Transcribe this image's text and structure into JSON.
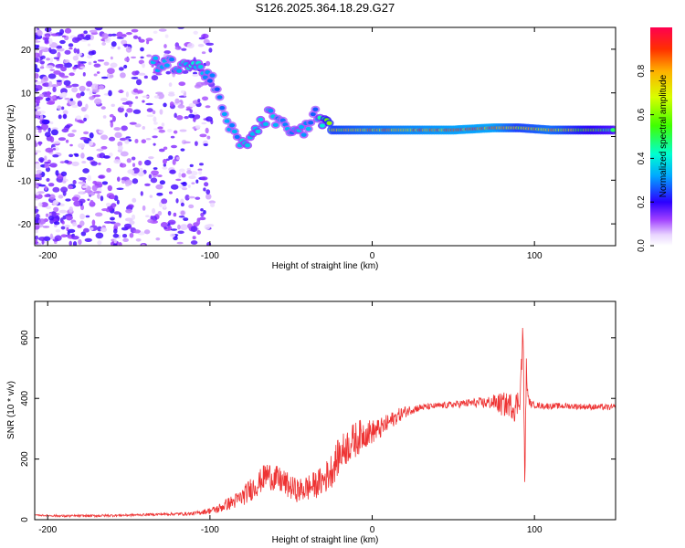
{
  "title": "S126.2025.364.18.29.G27",
  "chart_data": [
    {
      "type": "heatmap",
      "title": "S126.2025.364.18.29.G27",
      "xlabel": "Height of straight line (km)",
      "ylabel": "Frequency (Hz)",
      "xlim": [
        -208,
        150
      ],
      "ylim": [
        -25,
        25
      ],
      "xticks": [
        -200,
        -100,
        0,
        100
      ],
      "yticks": [
        -20,
        -10,
        0,
        10,
        20
      ],
      "colorbar": {
        "label": "Normalized spectral amplitude",
        "range": [
          0,
          1
        ],
        "ticks": [
          0.0,
          0.2,
          0.4,
          0.6,
          0.8
        ]
      },
      "ridge": [
        {
          "x": -135,
          "y": 16.5,
          "a": 0.35
        },
        {
          "x": -125,
          "y": 16.5,
          "a": 0.3
        },
        {
          "x": -110,
          "y": 16.5,
          "a": 0.4
        },
        {
          "x": -100,
          "y": 14.0,
          "a": 0.3
        },
        {
          "x": -88,
          "y": 2.0,
          "a": 0.3
        },
        {
          "x": -80,
          "y": -2.0,
          "a": 0.35
        },
        {
          "x": -72,
          "y": 1.0,
          "a": 0.4
        },
        {
          "x": -64,
          "y": 5.0,
          "a": 0.35
        },
        {
          "x": -55,
          "y": 2.5,
          "a": 0.3
        },
        {
          "x": -45,
          "y": 0.5,
          "a": 0.35
        },
        {
          "x": -35,
          "y": 5.0,
          "a": 0.3
        },
        {
          "x": -25,
          "y": 1.5,
          "a": 0.7
        },
        {
          "x": 0,
          "y": 1.5,
          "a": 0.8
        },
        {
          "x": 25,
          "y": 1.5,
          "a": 0.85
        },
        {
          "x": 50,
          "y": 1.5,
          "a": 0.9
        },
        {
          "x": 75,
          "y": 2.0,
          "a": 0.9
        },
        {
          "x": 90,
          "y": 2.0,
          "a": 0.7
        },
        {
          "x": 110,
          "y": 1.5,
          "a": 0.8
        },
        {
          "x": 130,
          "y": 1.5,
          "a": 0.6
        },
        {
          "x": 150,
          "y": 1.5,
          "a": 0.5
        }
      ]
    },
    {
      "type": "line",
      "xlabel": "Height of straight line (km)",
      "ylabel": "SNR (10 * v/v)",
      "xlim": [
        -208,
        150
      ],
      "ylim": [
        0,
        720
      ],
      "xticks": [
        -200,
        -100,
        0,
        100
      ],
      "yticks": [
        0,
        200,
        400,
        600
      ],
      "color": "#ee3333",
      "series": [
        {
          "name": "SNR",
          "x": [
            -208,
            -190,
            -170,
            -150,
            -130,
            -110,
            -100,
            -95,
            -90,
            -85,
            -80,
            -75,
            -70,
            -65,
            -60,
            -55,
            -50,
            -45,
            -40,
            -35,
            -30,
            -25,
            -20,
            -15,
            -10,
            -5,
            0,
            5,
            10,
            15,
            20,
            25,
            30,
            40,
            50,
            60,
            70,
            75,
            80,
            85,
            88,
            91,
            93,
            94,
            95,
            96,
            98,
            105,
            120,
            135,
            150
          ],
          "y": [
            15,
            12,
            13,
            15,
            18,
            20,
            30,
            35,
            50,
            60,
            75,
            100,
            120,
            150,
            135,
            125,
            105,
            95,
            105,
            115,
            130,
            165,
            215,
            245,
            265,
            285,
            290,
            300,
            320,
            340,
            355,
            365,
            370,
            375,
            380,
            385,
            385,
            388,
            380,
            380,
            370,
            400,
            620,
            120,
            500,
            400,
            380,
            375,
            375,
            372,
            370
          ],
          "noise": [
            2,
            4,
            4,
            4,
            4,
            6,
            10,
            15,
            20,
            25,
            30,
            40,
            40,
            45,
            45,
            45,
            40,
            40,
            45,
            45,
            50,
            60,
            60,
            60,
            60,
            50,
            40,
            35,
            30,
            25,
            20,
            15,
            12,
            10,
            12,
            14,
            20,
            25,
            40,
            40,
            50,
            40,
            60,
            40,
            40,
            15,
            10,
            10,
            10,
            10,
            10
          ]
        }
      ]
    }
  ]
}
